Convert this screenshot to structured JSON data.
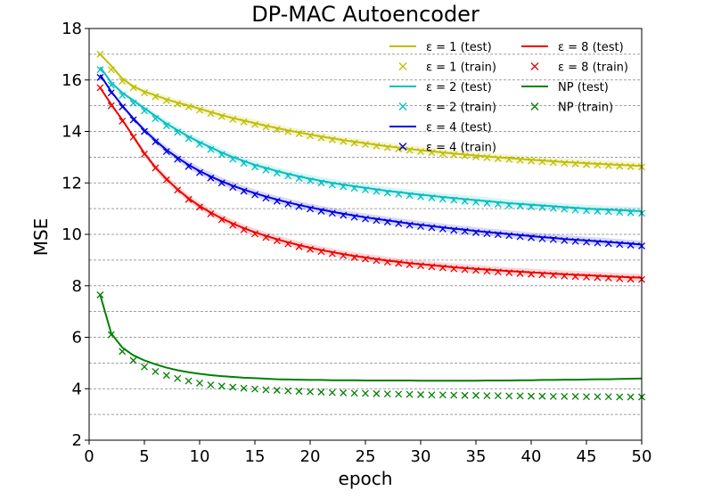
{
  "chart_data": {
    "type": "line",
    "title": "DP-MAC Autoencoder",
    "xlabel": "epoch",
    "ylabel": "MSE",
    "xlim": [
      0,
      50
    ],
    "ylim": [
      2,
      18
    ],
    "xticks": [
      0,
      5,
      10,
      15,
      20,
      25,
      30,
      35,
      40,
      45,
      50
    ],
    "yticks": [
      2,
      4,
      6,
      8,
      10,
      12,
      14,
      16,
      18
    ],
    "grid": "horizontal dashed at 1.0 steps",
    "legend_position": "top-right",
    "epochs": [
      1,
      2,
      3,
      4,
      5,
      6,
      7,
      8,
      9,
      10,
      11,
      12,
      13,
      14,
      15,
      16,
      17,
      18,
      19,
      20,
      21,
      22,
      23,
      24,
      25,
      26,
      27,
      28,
      29,
      30,
      31,
      32,
      33,
      34,
      35,
      36,
      37,
      38,
      39,
      40,
      41,
      42,
      43,
      44,
      45,
      46,
      47,
      48,
      49,
      50
    ],
    "series": [
      {
        "name": "ε = 1",
        "legend_test": "ε = 1 (test)",
        "legend_train": "ε = 1 (train)",
        "color": "#bfbf00",
        "test": [
          17.0,
          16.55,
          16.05,
          15.75,
          15.55,
          15.4,
          15.25,
          15.12,
          15.0,
          14.88,
          14.75,
          14.63,
          14.52,
          14.42,
          14.32,
          14.22,
          14.13,
          14.04,
          13.96,
          13.88,
          13.8,
          13.73,
          13.66,
          13.6,
          13.54,
          13.48,
          13.42,
          13.37,
          13.32,
          13.27,
          13.23,
          13.18,
          13.14,
          13.1,
          13.06,
          13.03,
          12.99,
          12.96,
          12.93,
          12.9,
          12.87,
          12.84,
          12.81,
          12.79,
          12.76,
          12.74,
          12.72,
          12.7,
          12.68,
          12.66
        ],
        "train": [
          17.0,
          16.4,
          15.95,
          15.7,
          15.5,
          15.35,
          15.2,
          15.07,
          14.95,
          14.83,
          14.7,
          14.58,
          14.47,
          14.37,
          14.27,
          14.17,
          14.08,
          13.99,
          13.91,
          13.83,
          13.75,
          13.68,
          13.61,
          13.55,
          13.49,
          13.43,
          13.37,
          13.32,
          13.27,
          13.22,
          13.18,
          13.13,
          13.09,
          13.05,
          13.01,
          12.98,
          12.94,
          12.91,
          12.88,
          12.85,
          12.82,
          12.79,
          12.76,
          12.74,
          12.71,
          12.69,
          12.67,
          12.65,
          12.63,
          12.62
        ]
      },
      {
        "name": "ε = 2",
        "legend_test": "ε = 2 (test)",
        "legend_train": "ε = 2 (train)",
        "color": "#00bfbf",
        "test": [
          16.5,
          15.9,
          15.5,
          15.2,
          14.9,
          14.6,
          14.3,
          14.05,
          13.8,
          13.58,
          13.38,
          13.18,
          13.0,
          12.85,
          12.7,
          12.58,
          12.46,
          12.35,
          12.25,
          12.16,
          12.08,
          12.0,
          11.93,
          11.87,
          11.81,
          11.75,
          11.69,
          11.64,
          11.59,
          11.54,
          11.5,
          11.45,
          11.41,
          11.37,
          11.33,
          11.29,
          11.25,
          11.21,
          11.18,
          11.15,
          11.12,
          11.09,
          11.06,
          11.03,
          11.0,
          10.98,
          10.96,
          10.94,
          10.92,
          10.9
        ],
        "train": [
          16.4,
          15.8,
          15.4,
          15.1,
          14.8,
          14.5,
          14.22,
          13.97,
          13.72,
          13.5,
          13.3,
          13.1,
          12.92,
          12.76,
          12.62,
          12.5,
          12.38,
          12.27,
          12.17,
          12.08,
          12.0,
          11.92,
          11.85,
          11.79,
          11.73,
          11.67,
          11.61,
          11.56,
          11.51,
          11.46,
          11.42,
          11.37,
          11.33,
          11.29,
          11.25,
          11.21,
          11.17,
          11.13,
          11.1,
          11.07,
          11.04,
          11.01,
          10.98,
          10.95,
          10.92,
          10.9,
          10.88,
          10.86,
          10.84,
          10.82
        ]
      },
      {
        "name": "ε = 4",
        "legend_test": "ε = 4 (test)",
        "legend_train": "ε = 4 (train)",
        "color": "#0000e0",
        "test": [
          16.2,
          15.55,
          15.0,
          14.5,
          14.05,
          13.65,
          13.28,
          12.98,
          12.7,
          12.46,
          12.25,
          12.06,
          11.89,
          11.74,
          11.6,
          11.47,
          11.35,
          11.24,
          11.14,
          11.05,
          10.96,
          10.88,
          10.8,
          10.73,
          10.66,
          10.6,
          10.54,
          10.48,
          10.42,
          10.37,
          10.32,
          10.27,
          10.22,
          10.18,
          10.13,
          10.09,
          10.05,
          10.01,
          9.97,
          9.93,
          9.89,
          9.86,
          9.82,
          9.79,
          9.76,
          9.73,
          9.7,
          9.67,
          9.64,
          9.6
        ],
        "train": [
          16.1,
          15.5,
          14.95,
          14.45,
          14.0,
          13.6,
          13.22,
          12.92,
          12.64,
          12.4,
          12.19,
          12.0,
          11.83,
          11.68,
          11.54,
          11.41,
          11.29,
          11.18,
          11.08,
          10.99,
          10.9,
          10.82,
          10.74,
          10.67,
          10.6,
          10.54,
          10.48,
          10.42,
          10.36,
          10.31,
          10.26,
          10.21,
          10.16,
          10.12,
          10.07,
          10.03,
          9.99,
          9.95,
          9.91,
          9.87,
          9.83,
          9.8,
          9.76,
          9.73,
          9.7,
          9.67,
          9.64,
          9.61,
          9.58,
          9.55
        ]
      },
      {
        "name": "ε = 8",
        "legend_test": "ε = 8 (test)",
        "legend_train": "ε = 8 (train)",
        "color": "#ee0000",
        "test": [
          15.7,
          15.05,
          14.45,
          13.8,
          13.15,
          12.6,
          12.15,
          11.75,
          11.4,
          11.1,
          10.85,
          10.62,
          10.42,
          10.24,
          10.08,
          9.94,
          9.81,
          9.69,
          9.58,
          9.48,
          9.39,
          9.31,
          9.23,
          9.16,
          9.1,
          9.04,
          8.98,
          8.93,
          8.88,
          8.84,
          8.8,
          8.76,
          8.72,
          8.69,
          8.66,
          8.63,
          8.6,
          8.57,
          8.55,
          8.52,
          8.5,
          8.47,
          8.45,
          8.43,
          8.41,
          8.39,
          8.37,
          8.35,
          8.33,
          8.32
        ],
        "train": [
          15.7,
          15.0,
          14.4,
          13.78,
          13.12,
          12.58,
          12.12,
          11.72,
          11.36,
          11.06,
          10.8,
          10.57,
          10.36,
          10.18,
          10.02,
          9.88,
          9.75,
          9.63,
          9.52,
          9.42,
          9.33,
          9.25,
          9.17,
          9.1,
          9.04,
          8.98,
          8.92,
          8.87,
          8.82,
          8.78,
          8.74,
          8.7,
          8.66,
          8.63,
          8.6,
          8.57,
          8.54,
          8.51,
          8.48,
          8.45,
          8.43,
          8.41,
          8.38,
          8.36,
          8.34,
          8.32,
          8.3,
          8.28,
          8.26,
          8.25
        ]
      },
      {
        "name": "NP",
        "legend_test": "NP (test)",
        "legend_train": "NP (train)",
        "color": "#008000",
        "test": [
          7.65,
          6.15,
          5.6,
          5.3,
          5.1,
          4.95,
          4.82,
          4.72,
          4.64,
          4.58,
          4.53,
          4.49,
          4.46,
          4.43,
          4.41,
          4.39,
          4.37,
          4.36,
          4.35,
          4.34,
          4.34,
          4.33,
          4.33,
          4.33,
          4.32,
          4.32,
          4.32,
          4.32,
          4.32,
          4.31,
          4.31,
          4.31,
          4.31,
          4.31,
          4.31,
          4.32,
          4.32,
          4.32,
          4.33,
          4.33,
          4.34,
          4.34,
          4.35,
          4.35,
          4.36,
          4.37,
          4.37,
          4.38,
          4.39,
          4.4
        ],
        "train": [
          7.65,
          6.1,
          5.45,
          5.1,
          4.85,
          4.67,
          4.52,
          4.4,
          4.3,
          4.22,
          4.15,
          4.1,
          4.06,
          4.02,
          3.99,
          3.96,
          3.94,
          3.92,
          3.9,
          3.88,
          3.87,
          3.85,
          3.84,
          3.83,
          3.82,
          3.81,
          3.8,
          3.79,
          3.78,
          3.77,
          3.76,
          3.76,
          3.75,
          3.74,
          3.74,
          3.73,
          3.73,
          3.72,
          3.72,
          3.71,
          3.71,
          3.7,
          3.7,
          3.7,
          3.69,
          3.69,
          3.69,
          3.68,
          3.68,
          3.68
        ]
      }
    ]
  }
}
